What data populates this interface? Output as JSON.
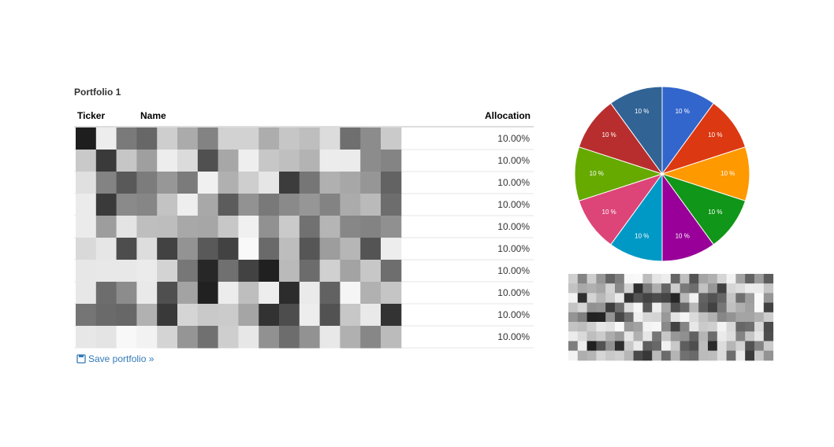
{
  "page": {
    "title": "Portfolio 1",
    "table": {
      "headers": [
        "Ticker",
        "Name",
        "Allocation"
      ],
      "rows": [
        "10.00%",
        "10.00%",
        "10.00%",
        "10.00%",
        "10.00%",
        "10.00%",
        "10.00%",
        "10.00%",
        "10.00%",
        "10.00%"
      ]
    },
    "save_link": "Save portfolio »"
  },
  "chart_data": {
    "type": "pie",
    "values": [
      10,
      10,
      10,
      10,
      10,
      10,
      10,
      10,
      10,
      10
    ],
    "value_labels": [
      "10 %",
      "10 %",
      "10 %",
      "10 %",
      "10 %",
      "10 %",
      "10 %",
      "10 %",
      "10 %",
      "10 %"
    ],
    "colors": [
      "#3366cc",
      "#dc3912",
      "#ff9900",
      "#109618",
      "#990099",
      "#0099c6",
      "#dd4477",
      "#66aa00",
      "#b82e2e",
      "#316395"
    ]
  }
}
